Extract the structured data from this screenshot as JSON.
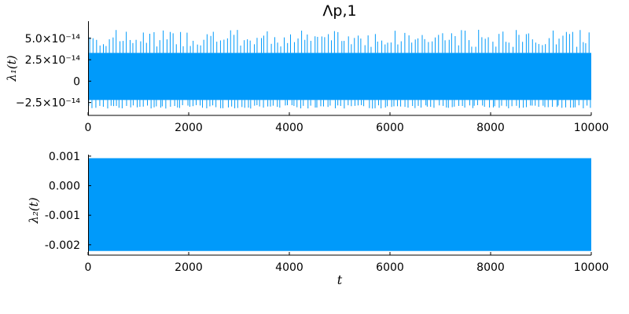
{
  "chart_data": [
    {
      "type": "line",
      "title": "Λp,1",
      "xlabel": "",
      "ylabel": "λ₁(t)",
      "xlim": [
        0,
        10000
      ],
      "ylim": [
        -4e-14,
        7e-14
      ],
      "x_ticks": [
        0,
        2000,
        4000,
        6000,
        8000,
        10000
      ],
      "x_tick_labels": [
        "0",
        "2000",
        "4000",
        "6000",
        "8000",
        "10000"
      ],
      "y_ticks": [
        -2.5e-14,
        0,
        2.5e-14,
        5e-14
      ],
      "y_tick_labels": [
        "−2.5×10⁻¹⁴",
        "0",
        "2.5×10⁻¹⁴",
        "5.0×10⁻¹⁴"
      ],
      "grid": false,
      "series": [
        {
          "name": "λ₁(t)",
          "color": "#009AFA",
          "x_range": [
            0,
            10000
          ],
          "band": [
            -2.2e-14,
            3.3e-14
          ],
          "peak_range": [
            4e-14,
            6e-14
          ],
          "trough_range": [
            -2.8e-14,
            -3.2e-14
          ],
          "spike_count": 150
        }
      ]
    },
    {
      "type": "line",
      "title": "",
      "xlabel": "t",
      "ylabel": "λ₂(t)",
      "xlim": [
        0,
        10000
      ],
      "ylim": [
        -0.00235,
        0.00105
      ],
      "x_ticks": [
        0,
        2000,
        4000,
        6000,
        8000,
        10000
      ],
      "x_tick_labels": [
        "0",
        "2000",
        "4000",
        "6000",
        "8000",
        "10000"
      ],
      "y_ticks": [
        0.001,
        0.0,
        -0.001,
        -0.002
      ],
      "y_tick_labels": [
        "0.001",
        "0.000",
        "-0.001",
        "-0.002"
      ],
      "grid": false,
      "series": [
        {
          "name": "λ₂(t)",
          "color": "#009AFA",
          "x_range": [
            0,
            10000
          ],
          "band": [
            -0.00221,
            0.00093
          ]
        }
      ]
    }
  ]
}
